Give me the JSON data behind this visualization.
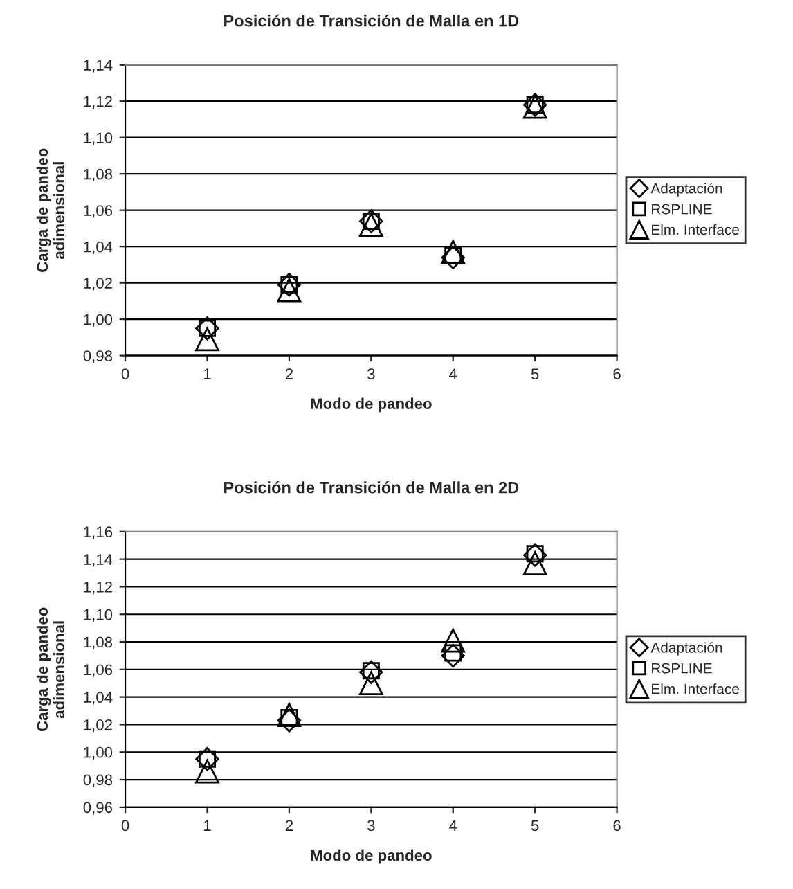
{
  "chart_data": [
    {
      "type": "scatter",
      "title": "Posición de Transición de Malla en 1D",
      "xlabel": "Modo de pandeo",
      "ylabel": "Carga de pandeo\nadimensional",
      "x": [
        1,
        2,
        3,
        4,
        5
      ],
      "series": [
        {
          "name": "Adaptación",
          "color": "#000000",
          "marker": "diamond",
          "values": [
            0.995,
            1.019,
            1.054,
            1.034,
            1.118
          ]
        },
        {
          "name": "RSPLINE",
          "color": "#000000",
          "marker": "square",
          "values": [
            0.995,
            1.019,
            1.054,
            1.035,
            1.118
          ]
        },
        {
          "name": "Elm. Interface",
          "color": "#000000",
          "marker": "triangle",
          "values": [
            0.989,
            1.016,
            1.052,
            1.037,
            1.117
          ]
        }
      ],
      "xlim": [
        0,
        6
      ],
      "xticks": [
        0,
        1,
        2,
        3,
        4,
        5,
        6
      ],
      "ylim": [
        0.98,
        1.14
      ],
      "yticks": [
        {
          "value": 0.98,
          "label": "0,98"
        },
        {
          "value": 1.0,
          "label": "1,00"
        },
        {
          "value": 1.02,
          "label": "1,02"
        },
        {
          "value": 1.04,
          "label": "1,04"
        },
        {
          "value": 1.06,
          "label": "1,06"
        },
        {
          "value": 1.08,
          "label": "1,08"
        },
        {
          "value": 1.1,
          "label": "1,10"
        },
        {
          "value": 1.12,
          "label": "1,12"
        },
        {
          "value": 1.14,
          "label": "1,14"
        }
      ],
      "grid": "y",
      "legend": "right"
    },
    {
      "type": "scatter",
      "title": "Posición de Transición de Malla en 2D",
      "xlabel": "Modo de pandeo",
      "ylabel": "Carga de pandeo\nadimensional",
      "x": [
        1,
        2,
        3,
        4,
        5
      ],
      "series": [
        {
          "name": "Adaptación",
          "color": "#000000",
          "marker": "diamond",
          "values": [
            0.995,
            1.023,
            1.058,
            1.07,
            1.143
          ]
        },
        {
          "name": "RSPLINE",
          "color": "#000000",
          "marker": "square",
          "values": [
            0.995,
            1.025,
            1.059,
            1.072,
            1.144
          ]
        },
        {
          "name": "Elm. Interface",
          "color": "#000000",
          "marker": "triangle",
          "values": [
            0.986,
            1.027,
            1.05,
            1.081,
            1.137
          ]
        }
      ],
      "xlim": [
        0,
        6
      ],
      "xticks": [
        0,
        1,
        2,
        3,
        4,
        5,
        6
      ],
      "ylim": [
        0.96,
        1.16
      ],
      "yticks": [
        {
          "value": 0.96,
          "label": "0,96"
        },
        {
          "value": 0.98,
          "label": "0,98"
        },
        {
          "value": 1.0,
          "label": "1,00"
        },
        {
          "value": 1.02,
          "label": "1,02"
        },
        {
          "value": 1.04,
          "label": "1,04"
        },
        {
          "value": 1.06,
          "label": "1,06"
        },
        {
          "value": 1.08,
          "label": "1,08"
        },
        {
          "value": 1.1,
          "label": "1,10"
        },
        {
          "value": 1.12,
          "label": "1,12"
        },
        {
          "value": 1.14,
          "label": "1,14"
        },
        {
          "value": 1.16,
          "label": "1,16"
        }
      ],
      "grid": "y",
      "legend": "right"
    }
  ]
}
